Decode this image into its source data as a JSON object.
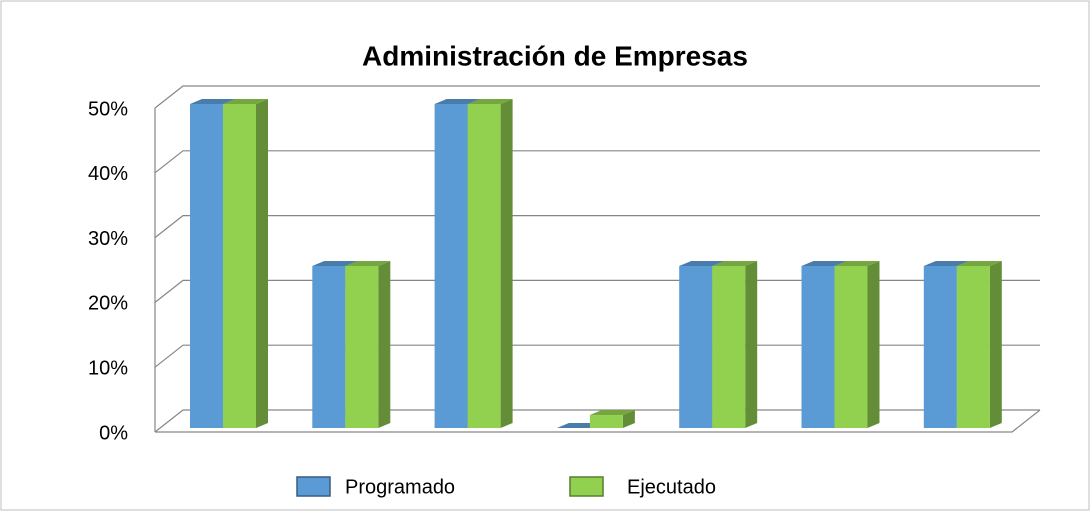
{
  "chart_data": {
    "type": "bar3d",
    "title": "Administración de Empresas",
    "categories": [
      null,
      null,
      null,
      null,
      null,
      null,
      null
    ],
    "series": [
      {
        "name": "Programado",
        "color": "#5b9bd5",
        "values": [
          50,
          25,
          50,
          0,
          25,
          25,
          25
        ]
      },
      {
        "name": "Ejecutado",
        "color": "#92d050",
        "values": [
          50,
          25,
          50,
          2,
          25,
          25,
          25
        ]
      }
    ],
    "ylim": [
      0,
      50
    ],
    "yticks": [
      {
        "value": 0,
        "label": "0%"
      },
      {
        "value": 10,
        "label": "10%"
      },
      {
        "value": 20,
        "label": "20%"
      },
      {
        "value": 30,
        "label": "30%"
      },
      {
        "value": 40,
        "label": "40%"
      },
      {
        "value": 50,
        "label": "50%"
      }
    ],
    "grid": true,
    "legend": "bottom"
  }
}
